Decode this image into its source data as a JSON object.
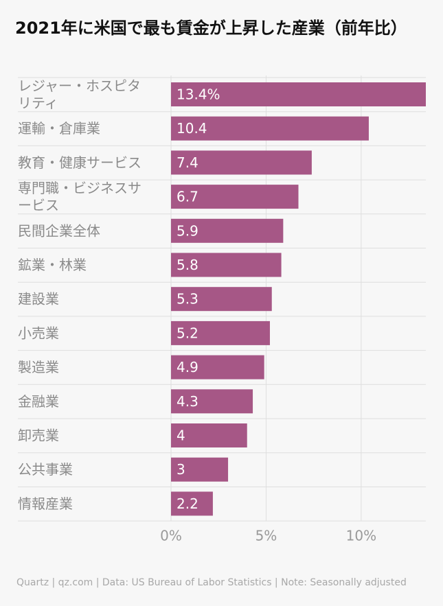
{
  "title": "2021年に米国で最も賃金が上昇した産業（前年比）",
  "footer": "Quartz | qz.com | Data: US Bureau of Labor Statistics | Note: Seasonally adjusted",
  "colors": {
    "bar": "#a65786",
    "grid": "#dedede",
    "background": "#f7f7f7"
  },
  "chart_data": {
    "type": "bar",
    "orientation": "horizontal",
    "title": "2021年に米国で最も賃金が上昇した産業（前年比）",
    "xlabel": "",
    "ylabel": "",
    "xlim": [
      0,
      13.4
    ],
    "xticks": [
      0,
      5,
      10
    ],
    "xtick_labels": [
      "0%",
      "5%",
      "10%"
    ],
    "grid": true,
    "categories": [
      "レジャー・ホスピタリティ",
      "運輸・倉庫業",
      "教育・健康サービス",
      "専門職・ビジネスサービス",
      "民間企業全体",
      "鉱業・林業",
      "建設業",
      "小売業",
      "製造業",
      "金融業",
      "卸売業",
      "公共事業",
      "情報産業"
    ],
    "category_lines": [
      [
        "レジャー・ホスピタ",
        "リティ"
      ],
      [
        "運輸・倉庫業"
      ],
      [
        "教育・健康サービス"
      ],
      [
        "専門職・ビジネスサ",
        "ービス"
      ],
      [
        "民間企業全体"
      ],
      [
        "鉱業・林業"
      ],
      [
        "建設業"
      ],
      [
        "小売業"
      ],
      [
        "製造業"
      ],
      [
        "金融業"
      ],
      [
        "卸売業"
      ],
      [
        "公共事業"
      ],
      [
        "情報産業"
      ]
    ],
    "values": [
      13.4,
      10.4,
      7.4,
      6.7,
      5.9,
      5.8,
      5.3,
      5.2,
      4.9,
      4.3,
      4,
      3,
      2.2
    ],
    "value_labels": [
      "13.4%",
      "10.4",
      "7.4",
      "6.7",
      "5.9",
      "5.8",
      "5.3",
      "5.2",
      "4.9",
      "4.3",
      "4",
      "3",
      "2.2"
    ]
  }
}
